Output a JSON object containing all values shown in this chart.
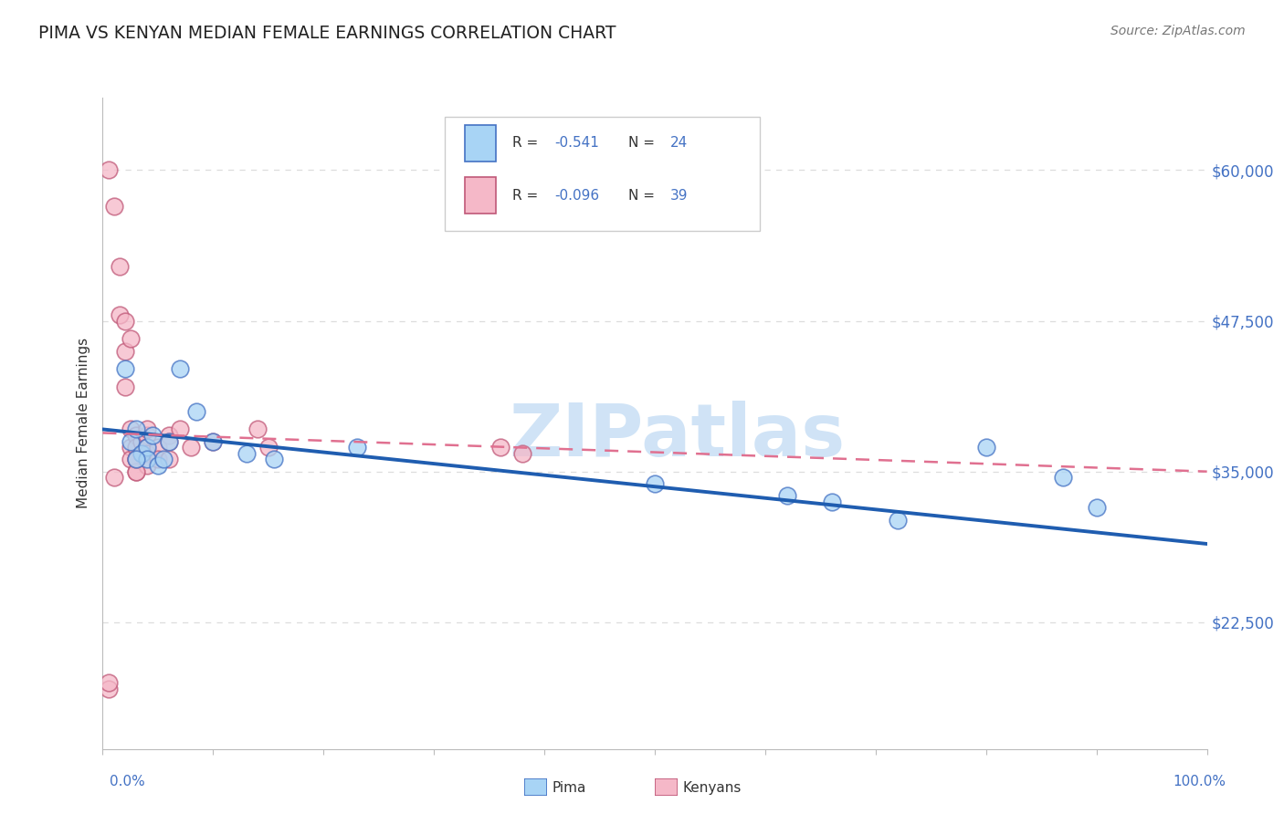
{
  "title": "PIMA VS KENYAN MEDIAN FEMALE EARNINGS CORRELATION CHART",
  "source": "Source: ZipAtlas.com",
  "ylabel": "Median Female Earnings",
  "ytick_values": [
    22500,
    35000,
    47500,
    60000
  ],
  "ytick_labels": [
    "$22,500",
    "$35,000",
    "$47,500",
    "$60,000"
  ],
  "ylim": [
    12000,
    66000
  ],
  "xlim": [
    0.0,
    1.0
  ],
  "pima_color": "#A8D4F5",
  "pima_edge_color": "#4472C4",
  "kenyan_color": "#F5B8C8",
  "kenyan_edge_color": "#C05878",
  "pima_line_color": "#1F5DB0",
  "kenyan_line_color": "#E07090",
  "watermark_text": "ZIPatlas",
  "watermark_color": "#C8DFF5",
  "grid_color": "#DDDDDD",
  "legend_r_pima": "-0.541",
  "legend_n_pima": "24",
  "legend_r_kenyan": "-0.096",
  "legend_n_kenyan": "39",
  "pima_x": [
    0.02,
    0.025,
    0.03,
    0.035,
    0.04,
    0.04,
    0.045,
    0.05,
    0.055,
    0.06,
    0.07,
    0.085,
    0.1,
    0.13,
    0.155,
    0.23,
    0.5,
    0.62,
    0.66,
    0.72,
    0.8,
    0.87,
    0.9,
    0.03
  ],
  "pima_y": [
    43500,
    37500,
    38500,
    36500,
    37000,
    36000,
    38000,
    35500,
    36000,
    37500,
    43500,
    40000,
    37500,
    36500,
    36000,
    37000,
    34000,
    33000,
    32500,
    31000,
    37000,
    34500,
    32000,
    36000
  ],
  "kenyan_x": [
    0.005,
    0.01,
    0.015,
    0.015,
    0.02,
    0.02,
    0.02,
    0.025,
    0.025,
    0.025,
    0.025,
    0.03,
    0.03,
    0.03,
    0.03,
    0.035,
    0.035,
    0.04,
    0.04,
    0.04,
    0.04,
    0.04,
    0.05,
    0.05,
    0.06,
    0.06,
    0.06,
    0.07,
    0.08,
    0.1,
    0.14,
    0.15,
    0.36,
    0.38,
    0.005,
    0.005,
    0.03,
    0.03,
    0.01
  ],
  "kenyan_y": [
    60000,
    57000,
    52000,
    48000,
    45000,
    42000,
    47500,
    46000,
    38500,
    37000,
    36000,
    38000,
    37000,
    36000,
    35000,
    37500,
    36500,
    38000,
    37000,
    36500,
    35500,
    38500,
    37000,
    36000,
    38000,
    37500,
    36000,
    38500,
    37000,
    37500,
    38500,
    37000,
    37000,
    36500,
    17000,
    17500,
    35000,
    36000,
    34500
  ],
  "pima_regression": [
    0.0,
    1.0,
    38500,
    29000
  ],
  "kenyan_regression": [
    0.0,
    1.0,
    38200,
    35000
  ]
}
